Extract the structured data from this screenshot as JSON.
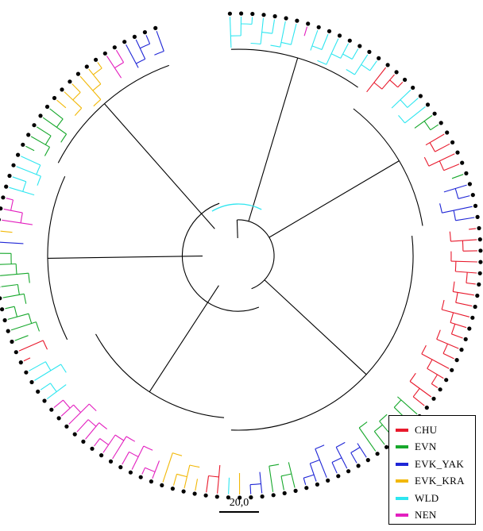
{
  "groups": [
    {
      "key": "CHU",
      "label": "CHU",
      "color": "#e8192c"
    },
    {
      "key": "EVN",
      "label": "EVN",
      "color": "#17a82c"
    },
    {
      "key": "EVK_YAK",
      "label": "EVK_YAK",
      "color": "#1f26d6"
    },
    {
      "key": "EVK_KRA",
      "label": "EVK_KRA",
      "color": "#f2b807"
    },
    {
      "key": "WLD",
      "label": "WLD",
      "color": "#2ee6f0"
    },
    {
      "key": "NEN",
      "label": "NEN",
      "color": "#e31fbf"
    }
  ],
  "scale_bar": {
    "label": "20,0"
  },
  "tip_sequence": [
    "WLD",
    "WLD",
    "WLD",
    "WLD",
    "WLD",
    "WLD",
    "WLD",
    "NEN",
    "WLD",
    "WLD",
    "WLD",
    "WLD",
    "WLD",
    "WLD",
    "WLD",
    "CHU",
    "CHU",
    "CHU",
    "WLD",
    "WLD",
    "WLD",
    "EVN",
    "EVN",
    "CHU",
    "CHU",
    "CHU",
    "CHU",
    "EVN",
    "EVK_YAK",
    "EVK_YAK",
    "EVK_YAK",
    "EVK_YAK",
    "CHU",
    "CHU",
    "CHU",
    "CHU",
    "CHU",
    "CHU",
    "CHU",
    "CHU",
    "CHU",
    "CHU",
    "CHU",
    "CHU",
    "CHU",
    "CHU",
    "CHU",
    "CHU",
    "CHU",
    "CHU",
    "EVN",
    "EVN",
    "EVN",
    "EVN",
    "EVN",
    "EVN",
    "EVK_YAK",
    "EVK_YAK",
    "EVK_YAK",
    "EVK_YAK",
    "EVK_YAK",
    "EVK_YAK",
    "EVK_YAK",
    "EVN",
    "EVN",
    "EVN",
    "EVK_YAK",
    "EVK_YAK",
    "EVK_KRA",
    "WLD",
    "CHU",
    "CHU",
    "EVK_KRA",
    "EVK_KRA",
    "EVK_KRA",
    "EVK_KRA",
    "NEN",
    "NEN",
    "NEN",
    "NEN",
    "NEN",
    "NEN",
    "NEN",
    "NEN",
    "NEN",
    "NEN",
    "NEN",
    "NEN",
    "WLD",
    "WLD",
    "WLD",
    "WLD",
    "CHU",
    "CHU",
    "EVN",
    "EVN",
    "EVN",
    "EVN",
    "EVN",
    "EVN",
    "EVN",
    "EVN",
    "EVN",
    "EVK_YAK",
    "EVK_KRA",
    "NEN",
    "NEN",
    "NEN",
    "WLD",
    "WLD",
    "WLD",
    "WLD",
    "EVN",
    "EVN",
    "EVN",
    "EVN",
    "EVN",
    "EVK_KRA",
    "EVK_KRA",
    "EVK_KRA",
    "EVK_KRA",
    "EVK_KRA",
    "EVK_KRA",
    "NEN",
    "NEN",
    "EVK_YAK",
    "EVK_YAK",
    "EVK_YAK",
    "EVK_YAK"
  ]
}
